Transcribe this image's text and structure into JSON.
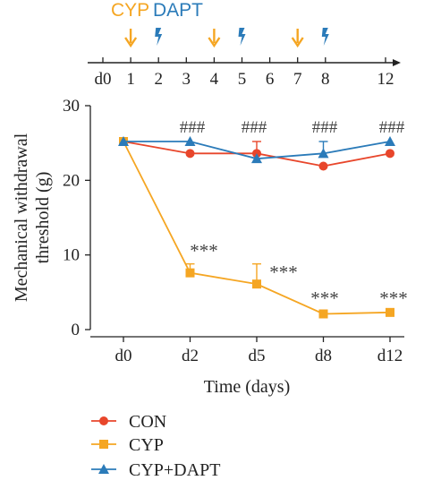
{
  "timeline": {
    "labels": [
      {
        "text": "CYP",
        "color": "#f5a623"
      },
      {
        "text": "DAPT",
        "color": "#2b7bb9"
      }
    ],
    "days": [
      0,
      1,
      2,
      3,
      4,
      5,
      6,
      7,
      8,
      12
    ],
    "day_labels": [
      "d0",
      "1",
      "2",
      "3",
      "4",
      "5",
      "6",
      "7",
      "8",
      "12"
    ],
    "cyp_days": [
      1,
      4,
      7
    ],
    "dapt_days": [
      2,
      5,
      8
    ],
    "cyp_icon": "arrow-down-icon",
    "dapt_icon": "lightning-bolt-icon"
  },
  "chart_data": {
    "type": "line",
    "categories": [
      "d0",
      "d2",
      "d5",
      "d8",
      "d12"
    ],
    "xlabel": "Time (days)",
    "ylabel_lines": [
      "Mechanical withdrawal",
      "threshold (g)"
    ],
    "ylim": [
      0,
      30
    ],
    "yticks": [
      0,
      10,
      20,
      30
    ],
    "grid": false,
    "legend_position": "bottom",
    "series": [
      {
        "name": "CON",
        "color": "#e8462b",
        "marker": "circle",
        "values": [
          25.2,
          23.6,
          23.6,
          21.9,
          23.6
        ],
        "err_up": [
          0,
          0,
          1.6,
          0,
          0
        ]
      },
      {
        "name": "CYP",
        "color": "#f5a623",
        "marker": "square",
        "values": [
          25.2,
          7.6,
          6.1,
          2.1,
          2.3
        ],
        "err_up": [
          0,
          1.2,
          2.7,
          0,
          0
        ]
      },
      {
        "name": "CYP+DAPT",
        "color": "#2b7bb9",
        "marker": "triangle",
        "values": [
          25.2,
          25.2,
          22.9,
          23.6,
          25.2
        ],
        "err_up": [
          0,
          0,
          0,
          1.6,
          0
        ]
      }
    ],
    "annotations_hash": {
      "text": "###",
      "categories": [
        "d2",
        "d5",
        "d8",
        "d12"
      ]
    },
    "annotations_star": {
      "text": "***",
      "categories": [
        "d2",
        "d5",
        "d8",
        "d12"
      ]
    }
  }
}
